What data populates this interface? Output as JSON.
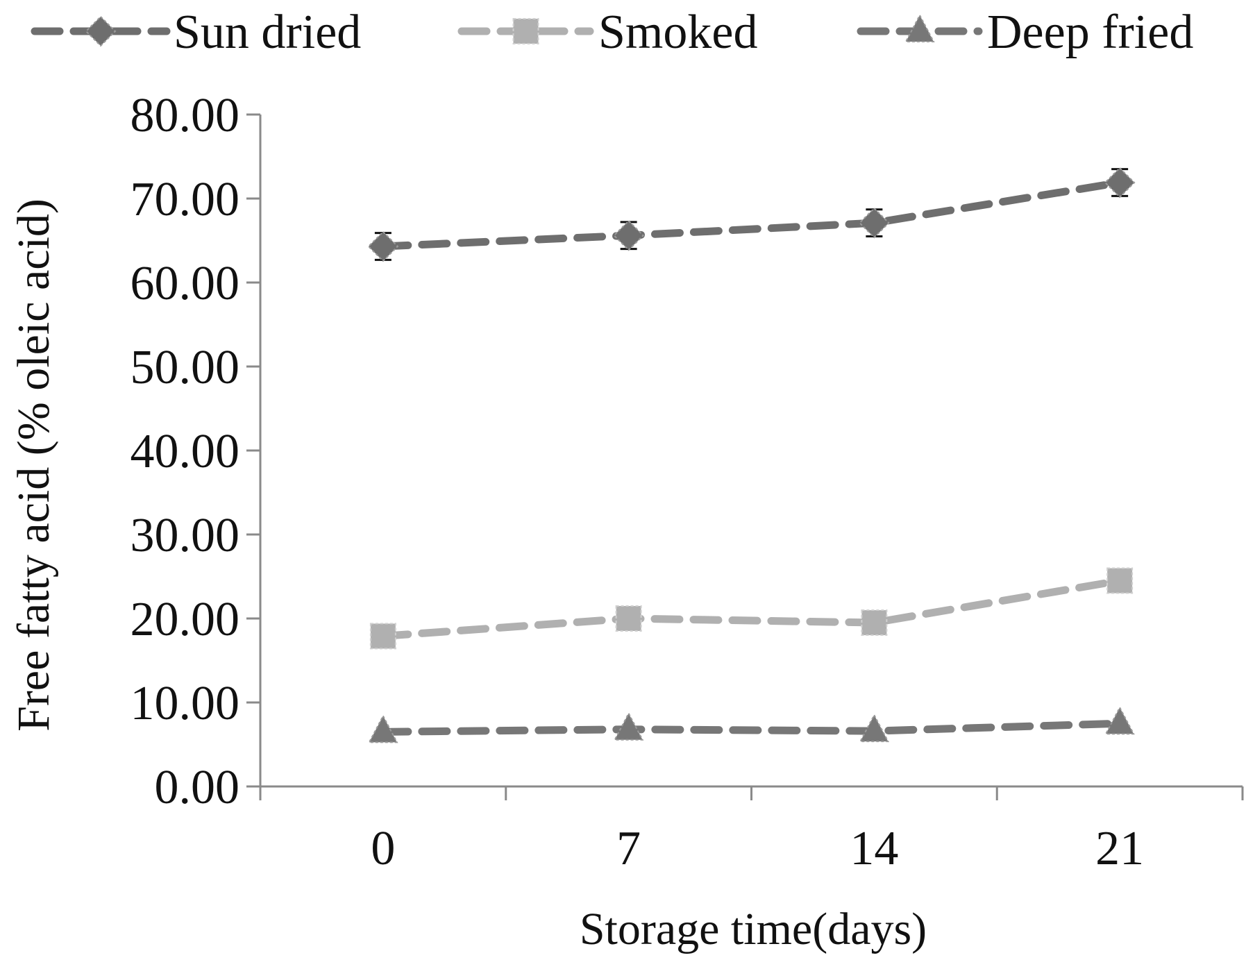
{
  "chart_data": {
    "type": "line",
    "x": [
      0,
      7,
      14,
      21
    ],
    "x_tick_labels": [
      "0",
      "7",
      "14",
      "21"
    ],
    "y_tick_labels": [
      "0.00",
      "10.00",
      "20.00",
      "30.00",
      "40.00",
      "50.00",
      "60.00",
      "70.00",
      "80.00"
    ],
    "xlabel": "Storage time(days)",
    "ylabel": "Free fatty acid (% oleic acid)",
    "ylim": [
      0,
      80
    ],
    "y_ticks": [
      0,
      10,
      20,
      30,
      40,
      50,
      60,
      70,
      80
    ],
    "grid": false,
    "legend_position": "top",
    "series": [
      {
        "name": "Sun dried",
        "values": [
          64.3,
          65.6,
          67.1,
          71.9
        ],
        "errors": [
          1.6,
          1.6,
          1.6,
          1.6
        ],
        "marker": "diamond",
        "color": "#6e6e6e"
      },
      {
        "name": "Smoked",
        "values": [
          17.9,
          20.0,
          19.5,
          24.5
        ],
        "errors": [
          0,
          0,
          0,
          0
        ],
        "marker": "square",
        "color": "#b0b0b0"
      },
      {
        "name": "Deep fried",
        "values": [
          6.5,
          6.8,
          6.6,
          7.5
        ],
        "errors": [
          0,
          0,
          0,
          0
        ],
        "marker": "triangle",
        "color": "#777777"
      }
    ]
  }
}
